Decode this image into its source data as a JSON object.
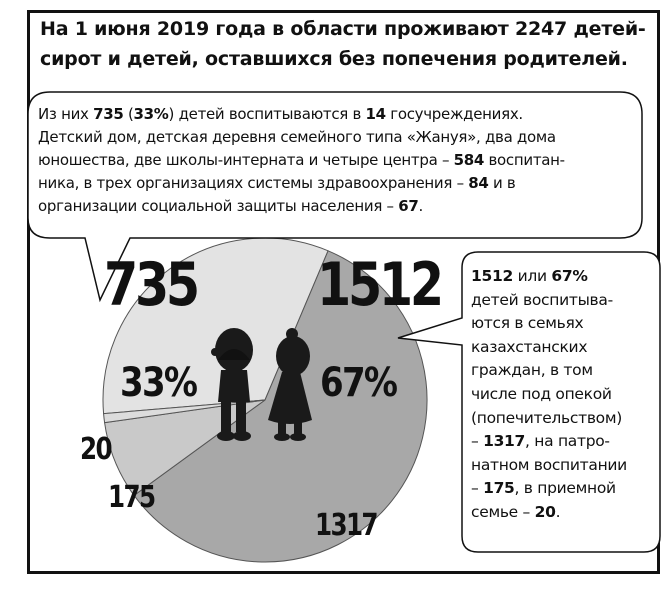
{
  "headline": {
    "line1": "На 1 июня 2019 года в области проживают 2247 детей-",
    "line2": "сирот и детей, оставшихся без попечения родителей."
  },
  "left_note": {
    "line1": [
      {
        "t": "Из них ",
        "b": false
      },
      {
        "t": "735",
        "b": true
      },
      {
        "t": " (",
        "b": false
      },
      {
        "t": "33%",
        "b": true
      },
      {
        "t": ") детей воспитываются в ",
        "b": false
      },
      {
        "t": "14",
        "b": true
      },
      {
        "t": " госучреждениях.",
        "b": false
      }
    ],
    "line2": [
      {
        "t": "Детский дом, детская деревня семейного типа «Жануя», два дома",
        "b": false
      }
    ],
    "line3": [
      {
        "t": "юношества, две школы-интерната и четыре центра – ",
        "b": false
      },
      {
        "t": "584",
        "b": true
      },
      {
        "t": " воспитан-",
        "b": false
      }
    ],
    "line4": [
      {
        "t": "ника, в трех организациях системы здравоохранения – ",
        "b": false
      },
      {
        "t": "84",
        "b": true
      },
      {
        "t": " и в",
        "b": false
      }
    ],
    "line5": [
      {
        "t": "организации социальной защиты населения – ",
        "b": false
      },
      {
        "t": "67",
        "b": true
      },
      {
        "t": ".",
        "b": false
      }
    ]
  },
  "right_note": {
    "line1": [
      {
        "t": "1512",
        "b": true
      },
      {
        "t": " или ",
        "b": false
      },
      {
        "t": "67%",
        "b": true
      }
    ],
    "line2": [
      {
        "t": "детей воспитыва-",
        "b": false
      }
    ],
    "line3": [
      {
        "t": "ются в семьях",
        "b": false
      }
    ],
    "line4": [
      {
        "t": "казахстанских",
        "b": false
      }
    ],
    "line5": [
      {
        "t": "граждан, в том",
        "b": false
      }
    ],
    "line6": [
      {
        "t": "числе под опекой",
        "b": false
      }
    ],
    "line7": [
      {
        "t": "(попечительством)",
        "b": false
      }
    ],
    "line8": [
      {
        "t": "– ",
        "b": false
      },
      {
        "t": "1317",
        "b": true
      },
      {
        "t": ", на патро-",
        "b": false
      }
    ],
    "line9": [
      {
        "t": "натном воспитании",
        "b": false
      }
    ],
    "line10": [
      {
        "t": "– ",
        "b": false
      },
      {
        "t": "175",
        "b": true
      },
      {
        "t": ", в приемной",
        "b": false
      }
    ],
    "line11": [
      {
        "t": "семье – ",
        "b": false
      },
      {
        "t": "20",
        "b": true
      },
      {
        "t": ".",
        "b": false
      }
    ]
  },
  "chart_data": {
    "type": "pie",
    "total": 2247,
    "slices": [
      {
        "label": "735",
        "value": 735,
        "percent_label": "33%",
        "color": "#e3e3e3"
      },
      {
        "label": "1317",
        "value": 1317,
        "color": "#a8a8a8"
      },
      {
        "label": "175",
        "value": 175,
        "color": "#c9c9c9"
      },
      {
        "label": "20",
        "value": 20,
        "color": "#dcdcdc"
      }
    ],
    "group_labels": [
      {
        "label": "735",
        "percent_label": "33%"
      },
      {
        "label": "1512",
        "percent_label": "67%"
      }
    ]
  },
  "colors": {
    "frame": "#111111",
    "bubble_fill": "#ffffff",
    "silhouette": "#1a1a1a"
  },
  "icons": [
    "boy-silhouette-icon",
    "girl-silhouette-icon"
  ]
}
